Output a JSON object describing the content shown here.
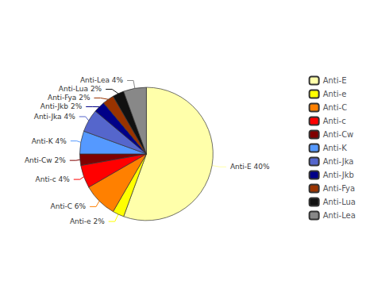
{
  "chart_data": {
    "type": "pie",
    "categories": [
      "Anti-E",
      "Anti-e",
      "Anti-C",
      "Anti-c",
      "Anti-Cw",
      "Anti-K",
      "Anti-Jka",
      "Anti-Jkb",
      "Anti-Fya",
      "Anti-Lua",
      "Anti-Lea"
    ],
    "values": [
      40,
      2,
      6,
      4,
      2,
      4,
      4,
      2,
      2,
      2,
      4
    ],
    "value_labels": [
      "Anti-E 40%",
      "Anti-e 2%",
      "Anti-C 6%",
      "Anti-c 4%",
      "Anti-Cw 2%",
      "Anti-K 4%",
      "Anti-Jka 4%",
      "Anti-Jkb 2%",
      "Anti-Fya 2%",
      "Anti-Lua 2%",
      "Anti-Lea 4%"
    ],
    "colors": [
      "#FFFFAA",
      "#FFFF00",
      "#FF8000",
      "#FF0000",
      "#800000",
      "#5599FF",
      "#5566CC",
      "#000088",
      "#993300",
      "#111111",
      "#888888"
    ],
    "legend": "right"
  }
}
